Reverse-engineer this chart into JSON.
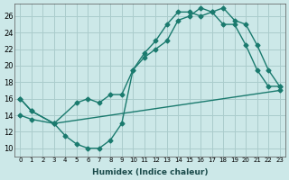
{
  "xlabel": "Humidex (Indice chaleur)",
  "ylabel": "",
  "xlim": [
    -0.5,
    23.5
  ],
  "ylim": [
    9.0,
    27.5
  ],
  "yticks": [
    10,
    12,
    14,
    16,
    18,
    20,
    22,
    24,
    26
  ],
  "xticks": [
    0,
    1,
    2,
    3,
    4,
    5,
    6,
    7,
    8,
    9,
    10,
    11,
    12,
    13,
    14,
    15,
    16,
    17,
    18,
    19,
    20,
    21,
    22,
    23
  ],
  "bg_color": "#cce8e8",
  "line_color": "#1a7a6e",
  "grid_color": "#aacccc",
  "line1_x": [
    0,
    1,
    3,
    4,
    5,
    6,
    7,
    8,
    9,
    10,
    11,
    12,
    13,
    14,
    15,
    16,
    17,
    18,
    19,
    20,
    21,
    22,
    23
  ],
  "line1_y": [
    16,
    14.5,
    13,
    11.5,
    10.5,
    10,
    10,
    11,
    13,
    19.5,
    21.5,
    23,
    25,
    26.5,
    26.5,
    26,
    26.5,
    25,
    25,
    22.5,
    19.5,
    17.5,
    17.5
  ],
  "line2_x": [
    0,
    1,
    3,
    5,
    6,
    7,
    8,
    9,
    10,
    11,
    12,
    13,
    14,
    15,
    16,
    17,
    18,
    19,
    20,
    21,
    22,
    23
  ],
  "line2_y": [
    16,
    14.5,
    13,
    15.5,
    16.0,
    15.5,
    16.5,
    16.5,
    19.5,
    21.0,
    22.0,
    23.0,
    25.5,
    26.0,
    27.0,
    26.5,
    27.0,
    25.5,
    25.0,
    22.5,
    19.5,
    17.5
  ],
  "line3_x": [
    0,
    1,
    3,
    23
  ],
  "line3_y": [
    14.0,
    13.5,
    13.0,
    17.0
  ]
}
